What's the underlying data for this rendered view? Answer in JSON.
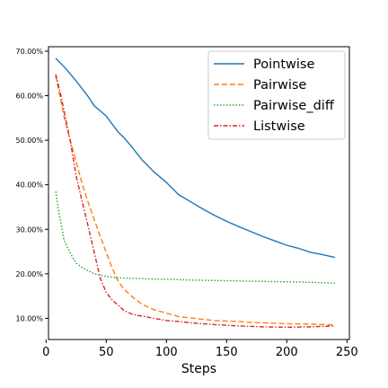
{
  "chart_data": {
    "type": "line",
    "title": "",
    "xlabel": "Steps",
    "ylabel": "",
    "xlim": [
      2,
      252
    ],
    "ylim": [
      0.0525,
      0.71
    ],
    "x_ticks": [
      0,
      50,
      100,
      150,
      200,
      250
    ],
    "y_ticks": [
      0.1,
      0.2,
      0.3,
      0.4,
      0.5,
      0.6,
      0.7
    ],
    "y_tick_labels": [
      "10.00%",
      "20.00%",
      "30.00%",
      "40.00%",
      "50.00%",
      "60.00%",
      "70.00%"
    ],
    "grid": false,
    "legend_position": "top-right",
    "series": [
      {
        "name": "Pointwise",
        "color": "#1f77b4",
        "dash": "solid",
        "x": [
          8,
          15,
          25,
          35,
          40,
          45,
          50,
          55,
          60,
          65,
          70,
          80,
          90,
          100,
          110,
          120,
          130,
          140,
          150,
          160,
          170,
          180,
          190,
          200,
          210,
          220,
          230,
          240
        ],
        "y": [
          0.684,
          0.665,
          0.633,
          0.598,
          0.577,
          0.566,
          0.554,
          0.536,
          0.518,
          0.505,
          0.489,
          0.455,
          0.428,
          0.405,
          0.378,
          0.362,
          0.346,
          0.331,
          0.318,
          0.306,
          0.295,
          0.284,
          0.274,
          0.264,
          0.257,
          0.248,
          0.243,
          0.237
        ]
      },
      {
        "name": "Pairwise",
        "color": "#ff7f0e",
        "dash": "dashed",
        "x": [
          8,
          15,
          20,
          25,
          30,
          35,
          40,
          45,
          50,
          55,
          60,
          65,
          70,
          80,
          90,
          100,
          110,
          120,
          130,
          140,
          150,
          160,
          170,
          180,
          190,
          200,
          220,
          240
        ],
        "y": [
          0.645,
          0.552,
          0.5,
          0.451,
          0.402,
          0.36,
          0.322,
          0.284,
          0.248,
          0.212,
          0.183,
          0.165,
          0.152,
          0.131,
          0.119,
          0.112,
          0.104,
          0.101,
          0.098,
          0.095,
          0.094,
          0.093,
          0.091,
          0.09,
          0.089,
          0.088,
          0.087,
          0.085
        ]
      },
      {
        "name": "Pairwise_diff",
        "color": "#2ca02c",
        "dash": "dotted",
        "x": [
          8,
          10,
          15,
          20,
          25,
          30,
          35,
          40,
          50,
          60,
          70,
          80,
          90,
          100,
          120,
          140,
          160,
          180,
          200,
          220,
          240
        ],
        "y": [
          0.385,
          0.348,
          0.275,
          0.247,
          0.224,
          0.214,
          0.207,
          0.2,
          0.194,
          0.191,
          0.19,
          0.189,
          0.188,
          0.188,
          0.186,
          0.185,
          0.184,
          0.183,
          0.182,
          0.181,
          0.179
        ]
      },
      {
        "name": "Listwise",
        "color": "#d62728",
        "dash": "dashdot",
        "x": [
          8,
          12,
          15,
          20,
          25,
          30,
          35,
          40,
          45,
          50,
          55,
          60,
          65,
          70,
          75,
          80,
          90,
          100,
          110,
          120,
          140,
          160,
          180,
          200,
          220,
          240
        ],
        "y": [
          0.648,
          0.604,
          0.565,
          0.5,
          0.42,
          0.362,
          0.306,
          0.248,
          0.19,
          0.158,
          0.141,
          0.129,
          0.117,
          0.111,
          0.107,
          0.105,
          0.1,
          0.095,
          0.093,
          0.09,
          0.086,
          0.083,
          0.081,
          0.08,
          0.081,
          0.083
        ]
      }
    ]
  }
}
